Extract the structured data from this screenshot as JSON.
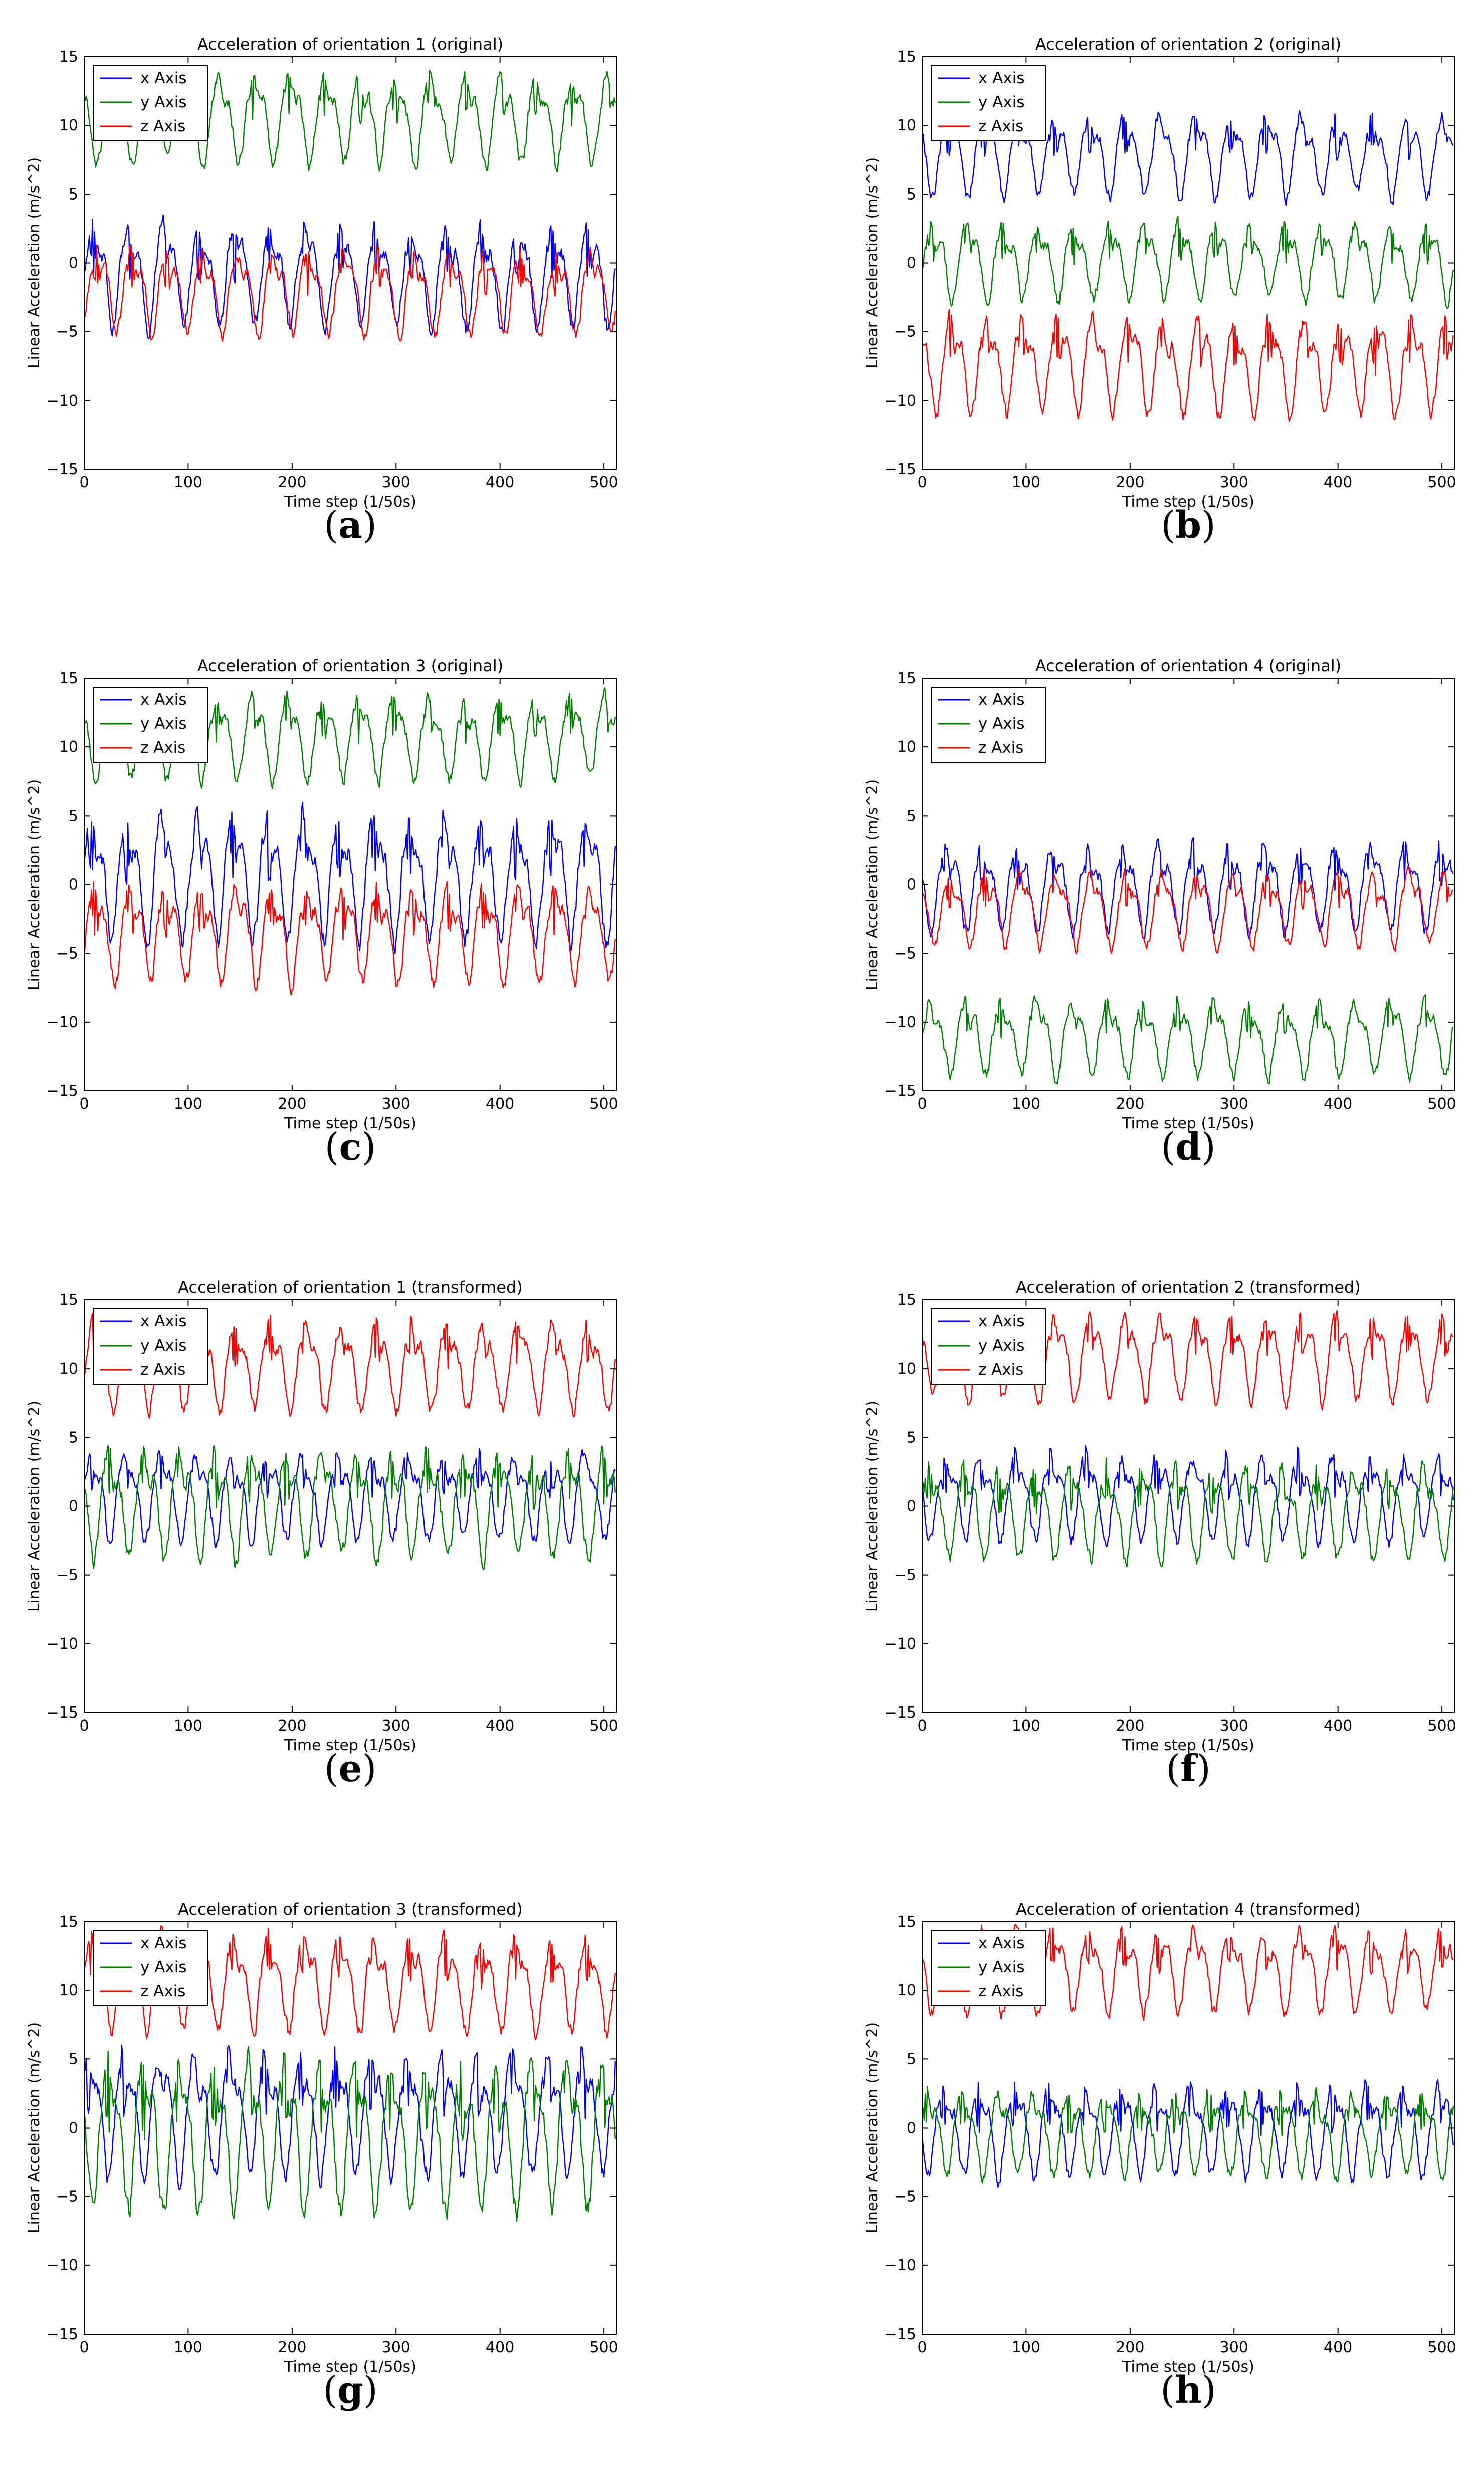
{
  "figure": {
    "x_label": "Time step (1/50s)",
    "y_label": "Linear Acceleration (m/s^2)",
    "x_ticks": [
      0,
      100,
      200,
      300,
      400,
      500
    ],
    "y_ticks": [
      -15,
      -10,
      -5,
      0,
      5,
      10,
      15
    ],
    "legend": [
      "x Axis",
      "y Axis",
      "z Axis"
    ],
    "colors": {
      "x": "#0000ff",
      "y": "#008000",
      "z": "#ff0000"
    }
  },
  "chart_data": [
    {
      "type": "line",
      "panel": "a",
      "caption_letter": "a",
      "title": "Acceleration of orientation 1 (original)",
      "xlabel": "Time step (1/50s)",
      "ylabel": "Linear Acceleration (m/s^2)",
      "xlim": [
        0,
        512
      ],
      "ylim": [
        -15,
        15
      ],
      "period": 34,
      "series": [
        {
          "name": "x Axis",
          "color": "#0000ff",
          "mean": -1.0,
          "amp": 2.6,
          "min": -5.5,
          "max": 3.5,
          "seed": 11
        },
        {
          "name": "y Axis",
          "color": "#008000",
          "mean": 9.3,
          "amp": 2.4,
          "min": 6.6,
          "max": 14.0,
          "seed": 12
        },
        {
          "name": "z Axis",
          "color": "#ff0000",
          "mean": -0.8,
          "amp": 2.0,
          "min": -5.7,
          "max": 1.3,
          "seed": 13
        }
      ]
    },
    {
      "type": "line",
      "panel": "b",
      "caption_letter": "b",
      "title": "Acceleration of orientation 2 (original)",
      "xlabel": "Time step (1/50s)",
      "ylabel": "Linear Acceleration (m/s^2)",
      "xlim": [
        0,
        512
      ],
      "ylim": [
        -15,
        15
      ],
      "period": 34,
      "series": [
        {
          "name": "x Axis",
          "color": "#0000ff",
          "mean": 8.0,
          "amp": 2.3,
          "min": 4.2,
          "max": 11.2,
          "seed": 21
        },
        {
          "name": "y Axis",
          "color": "#008000",
          "mean": 0.6,
          "amp": 2.3,
          "min": -3.3,
          "max": 3.4,
          "seed": 22
        },
        {
          "name": "z Axis",
          "color": "#ff0000",
          "mean": -5.4,
          "amp": 2.6,
          "min": -11.5,
          "max": -3.4,
          "seed": 23
        }
      ]
    },
    {
      "type": "line",
      "panel": "c",
      "caption_letter": "c",
      "title": "Acceleration of orientation 3 (original)",
      "xlabel": "Time step (1/50s)",
      "ylabel": "Linear Acceleration (m/s^2)",
      "xlim": [
        0,
        512
      ],
      "ylim": [
        -15,
        15
      ],
      "period": 34,
      "series": [
        {
          "name": "x Axis",
          "color": "#0000ff",
          "mean": 0.8,
          "amp": 2.8,
          "min": -5.0,
          "max": 6.0,
          "seed": 31
        },
        {
          "name": "y Axis",
          "color": "#008000",
          "mean": 9.3,
          "amp": 2.3,
          "min": 7.0,
          "max": 14.3,
          "seed": 32
        },
        {
          "name": "z Axis",
          "color": "#ff0000",
          "mean": -3.0,
          "amp": 2.0,
          "min": -8.0,
          "max": 0.2,
          "seed": 33
        }
      ]
    },
    {
      "type": "line",
      "panel": "d",
      "caption_letter": "d",
      "title": "Acceleration of orientation 4 (original)",
      "xlabel": "Time step (1/50s)",
      "ylabel": "Linear Acceleration (m/s^2)",
      "xlim": [
        0,
        512
      ],
      "ylim": [
        -15,
        15
      ],
      "period": 34,
      "series": [
        {
          "name": "x Axis",
          "color": "#0000ff",
          "mean": -1.2,
          "amp": 2.4,
          "min": -4.0,
          "max": 3.4,
          "seed": 41
        },
        {
          "name": "y Axis",
          "color": "#008000",
          "mean": -9.8,
          "amp": 2.4,
          "min": -14.5,
          "max": -8.0,
          "seed": 42
        },
        {
          "name": "z Axis",
          "color": "#ff0000",
          "mean": -2.2,
          "amp": 1.9,
          "min": -5.0,
          "max": 1.3,
          "seed": 43
        }
      ]
    },
    {
      "type": "line",
      "panel": "e",
      "caption_letter": "e",
      "title": "Acceleration of orientation 1 (transformed)",
      "xlabel": "Time step (1/50s)",
      "ylabel": "Linear Acceleration (m/s^2)",
      "xlim": [
        0,
        512
      ],
      "ylim": [
        -15,
        15
      ],
      "period": 34,
      "series": [
        {
          "name": "x Axis",
          "color": "#0000ff",
          "mean": 0.0,
          "amp": 2.1,
          "min": -3.0,
          "max": 4.2,
          "seed": 51
        },
        {
          "name": "y Axis",
          "color": "#008000",
          "mean": 0.0,
          "amp": 2.4,
          "min": -4.6,
          "max": 4.4,
          "seed": 52
        },
        {
          "name": "z Axis",
          "color": "#ff0000",
          "mean": 9.8,
          "amp": 2.4,
          "min": 6.4,
          "max": 14.0,
          "seed": 53
        }
      ]
    },
    {
      "type": "line",
      "panel": "f",
      "caption_letter": "f",
      "title": "Acceleration of orientation 2 (transformed)",
      "xlabel": "Time step (1/50s)",
      "ylabel": "Linear Acceleration (m/s^2)",
      "xlim": [
        0,
        512
      ],
      "ylim": [
        -15,
        15
      ],
      "period": 34,
      "series": [
        {
          "name": "x Axis",
          "color": "#0000ff",
          "mean": 0.0,
          "amp": 2.2,
          "min": -3.0,
          "max": 4.4,
          "seed": 61
        },
        {
          "name": "y Axis",
          "color": "#008000",
          "mean": 0.0,
          "amp": 2.4,
          "min": -4.4,
          "max": 3.5,
          "seed": 62
        },
        {
          "name": "z Axis",
          "color": "#ff0000",
          "mean": 9.8,
          "amp": 2.4,
          "min": 7.0,
          "max": 14.3,
          "seed": 63
        }
      ]
    },
    {
      "type": "line",
      "panel": "g",
      "caption_letter": "g",
      "title": "Acceleration of orientation 3 (transformed)",
      "xlabel": "Time step (1/50s)",
      "ylabel": "Linear Acceleration (m/s^2)",
      "xlim": [
        0,
        512
      ],
      "ylim": [
        -15,
        15
      ],
      "period": 34,
      "series": [
        {
          "name": "x Axis",
          "color": "#0000ff",
          "mean": 0.2,
          "amp": 2.3,
          "min": -4.5,
          "max": 6.0,
          "seed": 71
        },
        {
          "name": "y Axis",
          "color": "#008000",
          "mean": 0.0,
          "amp": 2.5,
          "min": -6.8,
          "max": 5.9,
          "seed": 72
        },
        {
          "name": "z Axis",
          "color": "#ff0000",
          "mean": 9.8,
          "amp": 2.6,
          "min": 6.4,
          "max": 14.7,
          "seed": 73
        }
      ]
    },
    {
      "type": "line",
      "panel": "h",
      "caption_letter": "h",
      "title": "Acceleration of orientation 4 (transformed)",
      "xlabel": "Time step (1/50s)",
      "ylabel": "Linear Acceleration (m/s^2)",
      "xlim": [
        0,
        512
      ],
      "ylim": [
        -15,
        15
      ],
      "period": 34,
      "series": [
        {
          "name": "x Axis",
          "color": "#0000ff",
          "mean": 0.0,
          "amp": 2.0,
          "min": -4.3,
          "max": 3.5,
          "seed": 81
        },
        {
          "name": "y Axis",
          "color": "#008000",
          "mean": 0.0,
          "amp": 2.2,
          "min": -4.0,
          "max": 3.0,
          "seed": 82
        },
        {
          "name": "z Axis",
          "color": "#ff0000",
          "mean": 10.0,
          "amp": 2.4,
          "min": 7.8,
          "max": 14.8,
          "seed": 83
        }
      ]
    }
  ]
}
